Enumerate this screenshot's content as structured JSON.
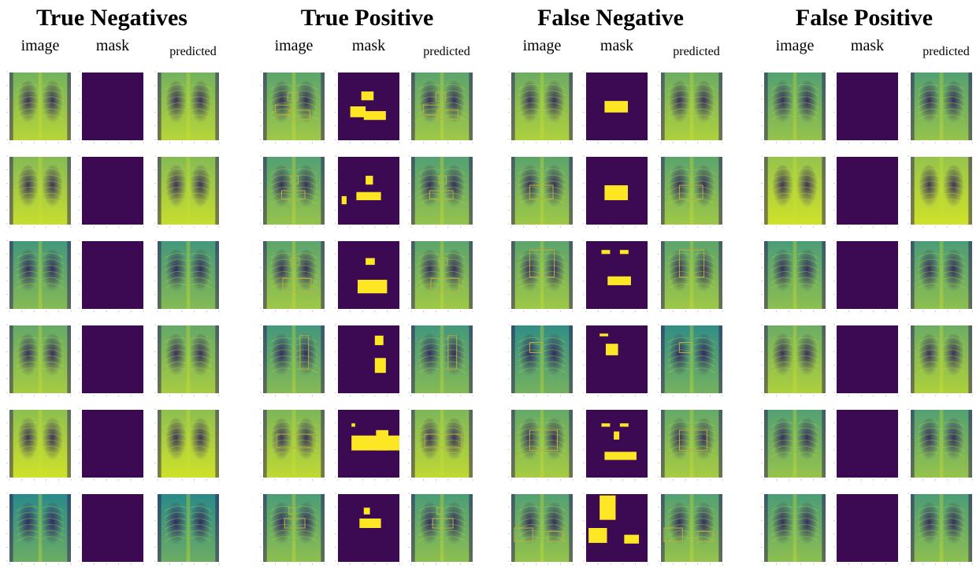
{
  "colors": {
    "mask_background": "#3b0a52",
    "mask_fill": "#fde725",
    "xray_dark": "#2c1a5e",
    "xray_mid": "#2a8a8a",
    "xray_light": "#cfe22a",
    "box_outline": "#b9b040"
  },
  "groups": [
    {
      "title": "True Negatives",
      "columns": [
        "image",
        "mask",
        "predicted"
      ],
      "rows": [
        {
          "tone": 0.75,
          "masks": [],
          "boxes": []
        },
        {
          "tone": 0.85,
          "masks": [],
          "boxes": []
        },
        {
          "tone": 0.45,
          "masks": [],
          "boxes": []
        },
        {
          "tone": 0.65,
          "masks": [],
          "boxes": []
        },
        {
          "tone": 0.9,
          "masks": [],
          "boxes": []
        },
        {
          "tone": 0.3,
          "masks": [],
          "boxes": []
        }
      ]
    },
    {
      "title": "True Positive",
      "columns": [
        "image",
        "mask",
        "predicted"
      ],
      "rows": [
        {
          "tone": 0.6,
          "masks": [
            [
              0.38,
              0.28,
              0.2,
              0.13
            ],
            [
              0.2,
              0.5,
              0.25,
              0.16
            ],
            [
              0.42,
              0.57,
              0.36,
              0.13
            ]
          ],
          "boxes": [
            [
              0.4,
              0.3,
              0.16,
              0.12
            ],
            [
              0.2,
              0.48,
              0.25,
              0.14
            ],
            [
              0.42,
              0.56,
              0.34,
              0.13
            ]
          ]
        },
        {
          "tone": 0.55,
          "masks": [
            [
              0.45,
              0.28,
              0.12,
              0.13
            ],
            [
              0.3,
              0.52,
              0.4,
              0.12
            ],
            [
              0.06,
              0.58,
              0.08,
              0.12
            ]
          ],
          "boxes": [
            [
              0.45,
              0.28,
              0.12,
              0.12
            ],
            [
              0.3,
              0.5,
              0.38,
              0.12
            ]
          ]
        },
        {
          "tone": 0.6,
          "masks": [
            [
              0.45,
              0.25,
              0.15,
              0.1
            ],
            [
              0.32,
              0.57,
              0.48,
              0.2
            ]
          ],
          "boxes": [
            [
              0.45,
              0.25,
              0.14,
              0.1
            ],
            [
              0.32,
              0.55,
              0.46,
              0.2
            ]
          ]
        },
        {
          "tone": 0.45,
          "masks": [
            [
              0.6,
              0.15,
              0.14,
              0.14
            ],
            [
              0.6,
              0.48,
              0.18,
              0.22
            ]
          ],
          "boxes": [
            [
              0.6,
              0.15,
              0.14,
              0.5
            ]
          ]
        },
        {
          "tone": 0.8,
          "masks": [
            [
              0.22,
              0.2,
              0.06,
              0.05
            ],
            [
              0.22,
              0.38,
              0.78,
              0.22
            ],
            [
              0.62,
              0.3,
              0.2,
              0.3
            ]
          ],
          "boxes": [
            [
              0.22,
              0.36,
              0.6,
              0.2
            ]
          ]
        },
        {
          "tone": 0.5,
          "masks": [
            [
              0.42,
              0.2,
              0.1,
              0.1
            ],
            [
              0.35,
              0.36,
              0.35,
              0.14
            ]
          ],
          "boxes": [
            [
              0.42,
              0.2,
              0.1,
              0.1
            ],
            [
              0.35,
              0.36,
              0.33,
              0.14
            ]
          ]
        }
      ]
    },
    {
      "title": "False Negative",
      "columns": [
        "image",
        "mask",
        "predicted"
      ],
      "rows": [
        {
          "tone": 0.7,
          "masks": [
            [
              0.3,
              0.42,
              0.38,
              0.17
            ]
          ],
          "boxes": []
        },
        {
          "tone": 0.6,
          "masks": [
            [
              0.3,
              0.42,
              0.38,
              0.22
            ]
          ],
          "boxes": [
            [
              0.3,
              0.42,
              0.38,
              0.2
            ]
          ]
        },
        {
          "tone": 0.6,
          "masks": [
            [
              0.25,
              0.13,
              0.14,
              0.06
            ],
            [
              0.55,
              0.13,
              0.14,
              0.06
            ],
            [
              0.35,
              0.52,
              0.38,
              0.13
            ]
          ],
          "boxes": [
            [
              0.3,
              0.13,
              0.4,
              0.4
            ]
          ]
        },
        {
          "tone": 0.35,
          "masks": [
            [
              0.22,
              0.12,
              0.14,
              0.04
            ],
            [
              0.32,
              0.27,
              0.2,
              0.17
            ]
          ],
          "boxes": [
            [
              0.3,
              0.25,
              0.2,
              0.15
            ]
          ]
        },
        {
          "tone": 0.65,
          "masks": [
            [
              0.25,
              0.2,
              0.14,
              0.05
            ],
            [
              0.55,
              0.2,
              0.14,
              0.05
            ],
            [
              0.45,
              0.32,
              0.09,
              0.12
            ],
            [
              0.3,
              0.62,
              0.52,
              0.12
            ]
          ],
          "boxes": [
            [
              0.3,
              0.3,
              0.45,
              0.3
            ]
          ]
        },
        {
          "tone": 0.55,
          "masks": [
            [
              0.22,
              0.02,
              0.26,
              0.36
            ],
            [
              0.04,
              0.5,
              0.3,
              0.22
            ],
            [
              0.62,
              0.6,
              0.24,
              0.13
            ]
          ],
          "boxes": [
            [
              0.05,
              0.5,
              0.3,
              0.2
            ],
            [
              0.6,
              0.55,
              0.25,
              0.15
            ]
          ]
        }
      ]
    },
    {
      "title": "False Positive",
      "columns": [
        "image",
        "mask",
        "predicted"
      ],
      "rows": [
        {
          "tone": 0.55,
          "masks": [],
          "boxes": []
        },
        {
          "tone": 0.95,
          "masks": [],
          "boxes": []
        },
        {
          "tone": 0.5,
          "masks": [],
          "boxes": []
        },
        {
          "tone": 0.7,
          "masks": [],
          "boxes": []
        },
        {
          "tone": 0.55,
          "masks": [],
          "boxes": []
        },
        {
          "tone": 0.5,
          "masks": [],
          "boxes": []
        }
      ]
    }
  ]
}
